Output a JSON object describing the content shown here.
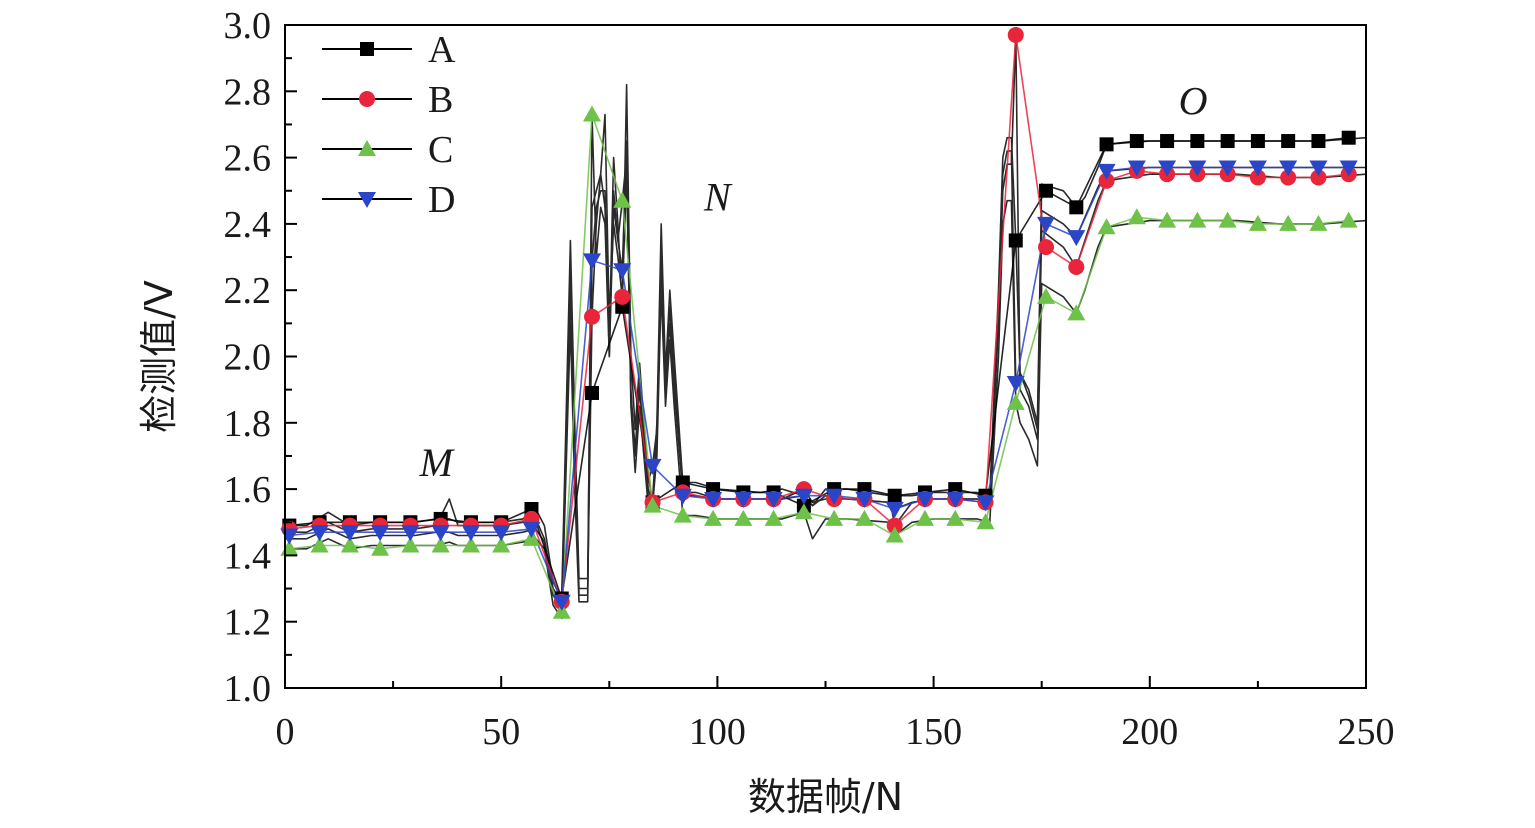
{
  "chart_data": {
    "type": "line",
    "xlabel": "数据帧/N",
    "ylabel": "检测值/V",
    "xlim": [
      0,
      250
    ],
    "ylim": [
      1.0,
      3.0
    ],
    "x_ticks": [
      "0",
      "50",
      "100",
      "150",
      "200",
      "250"
    ],
    "y_ticks": [
      "1.0",
      "1.2",
      "1.4",
      "1.6",
      "1.8",
      "2.0",
      "2.2",
      "2.4",
      "2.6",
      "2.8",
      "3.0"
    ],
    "grid": false,
    "legend": {
      "placement": "top-left",
      "entries": [
        "A",
        "B",
        "C",
        "D"
      ]
    },
    "annotations": [
      {
        "text": "M",
        "x": 35,
        "y": 1.64
      },
      {
        "text": "N",
        "x": 100,
        "y": 2.44
      },
      {
        "text": "O",
        "x": 210,
        "y": 2.73
      }
    ],
    "series": [
      {
        "name": "A",
        "color": "#000000",
        "marker": "square",
        "x": [
          1,
          8,
          15,
          22,
          29,
          36,
          43,
          50,
          57,
          64,
          71,
          78,
          85,
          92,
          99,
          106,
          113,
          120,
          127,
          134,
          141,
          148,
          155,
          162,
          169,
          176,
          183,
          190,
          197,
          204,
          211,
          218,
          225,
          232,
          239,
          246
        ],
        "values": [
          1.49,
          1.5,
          1.5,
          1.5,
          1.5,
          1.51,
          1.5,
          1.5,
          1.54,
          1.27,
          1.89,
          2.15,
          1.56,
          1.62,
          1.6,
          1.59,
          1.59,
          1.55,
          1.6,
          1.6,
          1.58,
          1.59,
          1.6,
          1.58,
          2.35,
          2.5,
          2.45,
          2.64,
          2.65,
          2.65,
          2.65,
          2.65,
          2.65,
          2.65,
          2.65,
          2.66
        ]
      },
      {
        "name": "B",
        "color": "#e8253a",
        "marker": "circle",
        "x": [
          1,
          8,
          15,
          22,
          29,
          36,
          43,
          50,
          57,
          64,
          71,
          78,
          85,
          92,
          99,
          106,
          113,
          120,
          127,
          134,
          141,
          148,
          155,
          162,
          169,
          176,
          183,
          190,
          197,
          204,
          211,
          218,
          225,
          232,
          239,
          246
        ],
        "values": [
          1.48,
          1.49,
          1.49,
          1.49,
          1.49,
          1.49,
          1.49,
          1.49,
          1.51,
          1.26,
          2.12,
          2.18,
          1.56,
          1.59,
          1.57,
          1.57,
          1.57,
          1.6,
          1.57,
          1.57,
          1.49,
          1.57,
          1.57,
          1.56,
          2.97,
          2.33,
          2.27,
          2.53,
          2.56,
          2.55,
          2.55,
          2.55,
          2.54,
          2.54,
          2.54,
          2.55
        ]
      },
      {
        "name": "C",
        "color": "#6ec24a",
        "marker": "triangle-up",
        "x": [
          1,
          8,
          15,
          22,
          29,
          36,
          43,
          50,
          57,
          64,
          71,
          78,
          85,
          92,
          99,
          106,
          113,
          120,
          127,
          134,
          141,
          148,
          155,
          162,
          169,
          176,
          183,
          190,
          197,
          204,
          211,
          218,
          225,
          232,
          239,
          246
        ],
        "values": [
          1.42,
          1.43,
          1.43,
          1.42,
          1.43,
          1.43,
          1.43,
          1.43,
          1.45,
          1.23,
          2.73,
          2.47,
          1.55,
          1.52,
          1.51,
          1.51,
          1.51,
          1.53,
          1.51,
          1.51,
          1.46,
          1.51,
          1.51,
          1.5,
          1.86,
          2.18,
          2.13,
          2.39,
          2.42,
          2.41,
          2.41,
          2.41,
          2.4,
          2.4,
          2.4,
          2.41
        ]
      },
      {
        "name": "D",
        "color": "#2a45c8",
        "marker": "triangle-down",
        "x": [
          1,
          8,
          15,
          22,
          29,
          36,
          43,
          50,
          57,
          64,
          71,
          78,
          85,
          92,
          99,
          106,
          113,
          120,
          127,
          134,
          141,
          148,
          155,
          162,
          169,
          176,
          183,
          190,
          197,
          204,
          211,
          218,
          225,
          232,
          239,
          246
        ],
        "values": [
          1.46,
          1.47,
          1.47,
          1.47,
          1.47,
          1.47,
          1.47,
          1.47,
          1.48,
          1.26,
          2.29,
          2.26,
          1.67,
          1.58,
          1.57,
          1.57,
          1.57,
          1.58,
          1.58,
          1.57,
          1.54,
          1.57,
          1.57,
          1.56,
          1.92,
          2.4,
          2.36,
          2.56,
          2.57,
          2.57,
          2.57,
          2.57,
          2.57,
          2.57,
          2.57,
          2.57
        ]
      }
    ],
    "raw_traces": {
      "x": [
        0,
        5,
        10,
        15,
        20,
        25,
        30,
        35,
        38,
        40,
        45,
        50,
        55,
        58,
        60,
        62,
        64,
        66,
        67,
        68,
        70,
        71,
        72,
        73,
        74,
        75,
        76,
        77,
        78,
        79,
        80,
        81,
        82,
        83,
        84,
        85,
        86,
        87,
        88,
        89,
        90,
        92,
        95,
        100,
        110,
        115,
        120,
        122,
        125,
        130,
        140,
        141,
        145,
        150,
        160,
        163,
        165,
        166,
        167,
        168,
        169,
        170,
        172,
        174,
        175,
        180,
        183,
        185,
        188,
        190,
        200,
        210,
        220,
        230,
        240,
        250
      ],
      "A": [
        1.49,
        1.49,
        1.53,
        1.49,
        1.5,
        1.5,
        1.5,
        1.51,
        1.51,
        1.5,
        1.5,
        1.5,
        1.51,
        1.54,
        1.49,
        1.32,
        1.27,
        2.35,
        1.8,
        1.33,
        1.33,
        2.45,
        2.5,
        2.55,
        2.45,
        2.05,
        2.6,
        2.4,
        2.15,
        2.82,
        2.0,
        1.78,
        1.98,
        1.8,
        1.6,
        1.56,
        1.8,
        2.4,
        1.95,
        2.2,
        2.0,
        1.62,
        1.62,
        1.6,
        1.59,
        1.6,
        1.58,
        1.55,
        1.6,
        1.6,
        1.58,
        1.58,
        1.58,
        1.59,
        1.59,
        1.58,
        2.2,
        2.6,
        2.66,
        2.66,
        2.35,
        1.95,
        1.9,
        1.8,
        2.52,
        2.5,
        2.45,
        2.48,
        2.57,
        2.64,
        2.65,
        2.65,
        2.65,
        2.65,
        2.65,
        2.66
      ],
      "B": [
        1.47,
        1.47,
        1.5,
        1.47,
        1.48,
        1.48,
        1.48,
        1.49,
        1.57,
        1.49,
        1.49,
        1.49,
        1.5,
        1.51,
        1.45,
        1.3,
        1.26,
        2.2,
        1.7,
        1.3,
        1.3,
        2.12,
        2.4,
        2.55,
        2.73,
        2.1,
        2.4,
        2.3,
        2.18,
        2.55,
        1.9,
        1.7,
        1.9,
        1.75,
        1.58,
        1.56,
        1.75,
        2.3,
        1.9,
        2.1,
        1.9,
        1.59,
        1.59,
        1.57,
        1.57,
        1.57,
        1.6,
        1.56,
        1.57,
        1.57,
        1.56,
        1.49,
        1.56,
        1.57,
        1.57,
        1.56,
        2.1,
        2.5,
        2.58,
        2.58,
        2.97,
        1.9,
        1.85,
        1.75,
        2.38,
        2.33,
        2.27,
        2.35,
        2.47,
        2.53,
        2.55,
        2.55,
        2.55,
        2.54,
        2.54,
        2.55
      ],
      "C": [
        1.42,
        1.42,
        1.45,
        1.42,
        1.43,
        1.43,
        1.43,
        1.43,
        1.44,
        1.43,
        1.43,
        1.43,
        1.44,
        1.45,
        1.42,
        1.25,
        1.21,
        2.1,
        1.6,
        1.26,
        1.26,
        2.73,
        2.3,
        2.45,
        2.4,
        2.0,
        2.5,
        2.35,
        2.47,
        2.6,
        1.85,
        1.65,
        1.85,
        1.7,
        1.55,
        1.55,
        1.7,
        2.2,
        1.85,
        2.05,
        1.85,
        1.52,
        1.52,
        1.51,
        1.51,
        1.51,
        1.53,
        1.45,
        1.51,
        1.51,
        1.5,
        1.46,
        1.5,
        1.51,
        1.51,
        1.5,
        2.0,
        2.4,
        2.47,
        2.47,
        1.86,
        1.8,
        1.75,
        1.67,
        2.22,
        2.18,
        2.13,
        2.2,
        2.33,
        2.39,
        2.41,
        2.41,
        2.41,
        2.4,
        2.4,
        2.41
      ],
      "D": [
        1.45,
        1.45,
        1.48,
        1.45,
        1.46,
        1.46,
        1.46,
        1.47,
        1.47,
        1.46,
        1.46,
        1.46,
        1.47,
        1.48,
        1.44,
        1.28,
        1.24,
        2.25,
        1.75,
        1.28,
        1.28,
        2.29,
        2.45,
        2.5,
        2.5,
        2.0,
        2.45,
        2.35,
        2.26,
        2.65,
        1.88,
        1.72,
        1.92,
        1.78,
        1.62,
        1.67,
        1.78,
        2.3,
        1.9,
        2.15,
        1.95,
        1.58,
        1.58,
        1.57,
        1.57,
        1.57,
        1.58,
        1.55,
        1.58,
        1.57,
        1.56,
        1.54,
        1.56,
        1.57,
        1.57,
        1.56,
        2.15,
        2.55,
        2.62,
        2.62,
        1.92,
        1.95,
        1.88,
        1.78,
        2.44,
        2.4,
        2.36,
        2.42,
        2.51,
        2.56,
        2.57,
        2.57,
        2.57,
        2.57,
        2.57,
        2.57
      ]
    }
  }
}
